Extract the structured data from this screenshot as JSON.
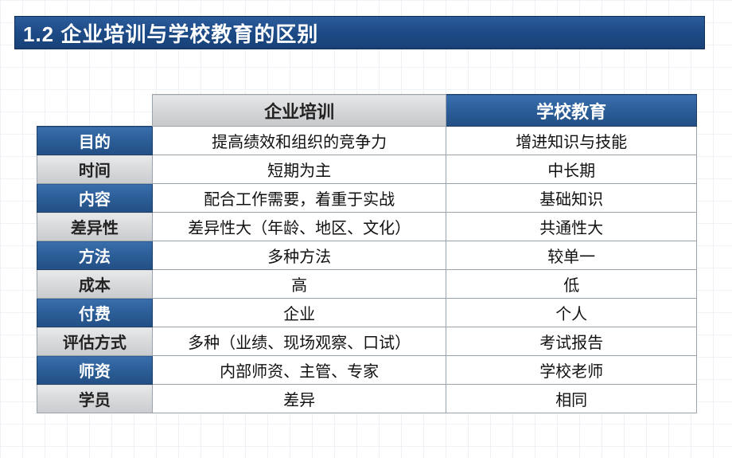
{
  "title": "1.2 企业培训与学校教育的区别",
  "table": {
    "col_headers": [
      "企业培训",
      "学校教育"
    ],
    "col_header_styles": [
      "gray",
      "blue"
    ],
    "rows": [
      {
        "label": "目的",
        "style": "blue",
        "cells": [
          "提高绩效和组织的竞争力",
          "增进知识与技能"
        ]
      },
      {
        "label": "时间",
        "style": "gray",
        "cells": [
          "短期为主",
          "中长期"
        ]
      },
      {
        "label": "内容",
        "style": "blue",
        "cells": [
          "配合工作需要，着重于实战",
          "基础知识"
        ]
      },
      {
        "label": "差异性",
        "style": "gray",
        "cells": [
          "差异性大（年龄、地区、文化）",
          "共通性大"
        ]
      },
      {
        "label": "方法",
        "style": "blue",
        "cells": [
          "多种方法",
          "较单一"
        ]
      },
      {
        "label": "成本",
        "style": "gray",
        "cells": [
          "高",
          "低"
        ]
      },
      {
        "label": "付费",
        "style": "blue",
        "cells": [
          "企业",
          "个人"
        ]
      },
      {
        "label": "评估方式",
        "style": "gray",
        "cells": [
          "多种（业绩、现场观察、口试）",
          "考试报告"
        ]
      },
      {
        "label": "师资",
        "style": "blue",
        "cells": [
          "内部师资、主管、专家",
          "学校老师"
        ]
      },
      {
        "label": "学员",
        "style": "gray",
        "cells": [
          "差异",
          "相同"
        ]
      }
    ]
  },
  "colors": {
    "blue_header_bg": "#2b5d97",
    "gray_header_bg": "#d5d6d8",
    "cell_bg": "#ffffff",
    "border": "#9aa3ab",
    "title_bg": "#1d4b87",
    "text_white": "#ffffff",
    "text_dark": "#111111"
  }
}
